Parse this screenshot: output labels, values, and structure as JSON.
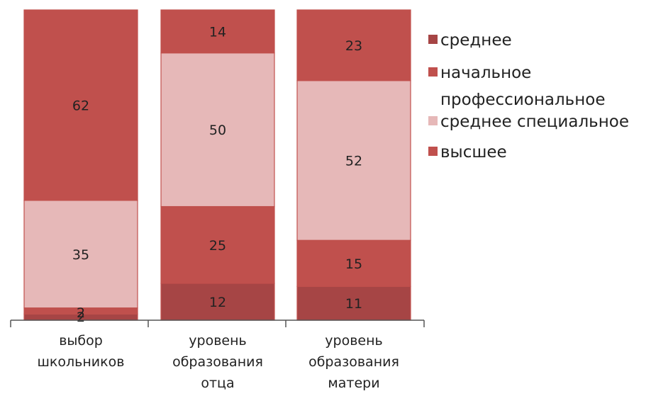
{
  "chart_data": {
    "type": "bar",
    "stacked": true,
    "percent": true,
    "categories": [
      "выбор школьников",
      "уровень образования отца",
      "уровень образования матери"
    ],
    "category_lines": [
      [
        "выбор",
        "школьников"
      ],
      [
        "уровень",
        "образования",
        "отца"
      ],
      [
        "уровень",
        "образования",
        "матери"
      ]
    ],
    "series": [
      {
        "name": "среднее",
        "values": [
          2,
          12,
          11
        ],
        "color": "#a64545"
      },
      {
        "name": "начальное профессиональное",
        "values": [
          2,
          25,
          15
        ],
        "color": "#c0504d"
      },
      {
        "name": "среднее специальное",
        "values": [
          35,
          50,
          52
        ],
        "color": "#e6b8b8"
      },
      {
        "name": "высшее",
        "values": [
          62,
          14,
          23
        ],
        "color": "#c0504d"
      }
    ],
    "segment_labels": [
      [
        "2",
        "12",
        "11"
      ],
      [
        "2",
        "25",
        "15"
      ],
      [
        "35",
        "50",
        "52"
      ],
      [
        "62",
        "14",
        "23"
      ]
    ],
    "legend_lines": [
      [
        "среднее"
      ],
      [
        "начальное",
        "профессиональное"
      ],
      [
        "среднее специальное"
      ],
      [
        "высшее"
      ]
    ],
    "legend_position": "right",
    "grid": false,
    "title": "",
    "xlabel": "",
    "ylabel": ""
  }
}
